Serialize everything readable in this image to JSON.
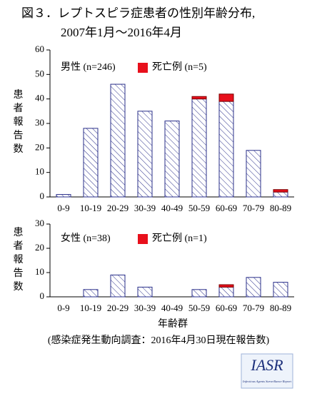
{
  "title": "図３．レプトスピラ症患者の性別年齢分布,",
  "subtitle": "2007年1月〜2016年4月",
  "source_note": "(感染症発生動向調査：2016年4月30日現在報告数)",
  "logo": {
    "text": "IASR",
    "subtext": "Infectious Agents Surveillance Report"
  },
  "chart_data": [
    {
      "type": "bar",
      "stacked": true,
      "y_label": "患者報告数",
      "categories": [
        "0-9",
        "10-19",
        "20-29",
        "30-39",
        "40-49",
        "50-59",
        "60-69",
        "70-79",
        "80-89"
      ],
      "series": [
        {
          "name": "男性 (n=246)",
          "color": "#2a2f8a",
          "pattern": "hatch",
          "values": [
            1,
            28,
            46,
            35,
            31,
            40,
            39,
            19,
            2
          ]
        },
        {
          "name": "死亡例 (n=5)",
          "color": "#e8101c",
          "values": [
            0,
            0,
            0,
            0,
            0,
            1,
            3,
            0,
            1
          ]
        }
      ],
      "ylim": [
        0,
        60
      ],
      "yticks": [
        0,
        10,
        20,
        30,
        40,
        50,
        60
      ]
    },
    {
      "type": "bar",
      "stacked": true,
      "y_label": "患者報告数",
      "x_label": "年齢群",
      "categories": [
        "0-9",
        "10-19",
        "20-29",
        "30-39",
        "40-49",
        "50-59",
        "60-69",
        "70-79",
        "80-89"
      ],
      "series": [
        {
          "name": "女性 (n=38)",
          "color": "#2a2f8a",
          "pattern": "hatch",
          "values": [
            0,
            3,
            9,
            4,
            0,
            3,
            4,
            8,
            6
          ]
        },
        {
          "name": "死亡例 (n=1)",
          "color": "#e8101c",
          "values": [
            0,
            0,
            0,
            0,
            0,
            0,
            1,
            0,
            0
          ]
        }
      ],
      "ylim": [
        0,
        30
      ],
      "yticks": [
        0,
        10,
        20,
        30
      ]
    }
  ]
}
